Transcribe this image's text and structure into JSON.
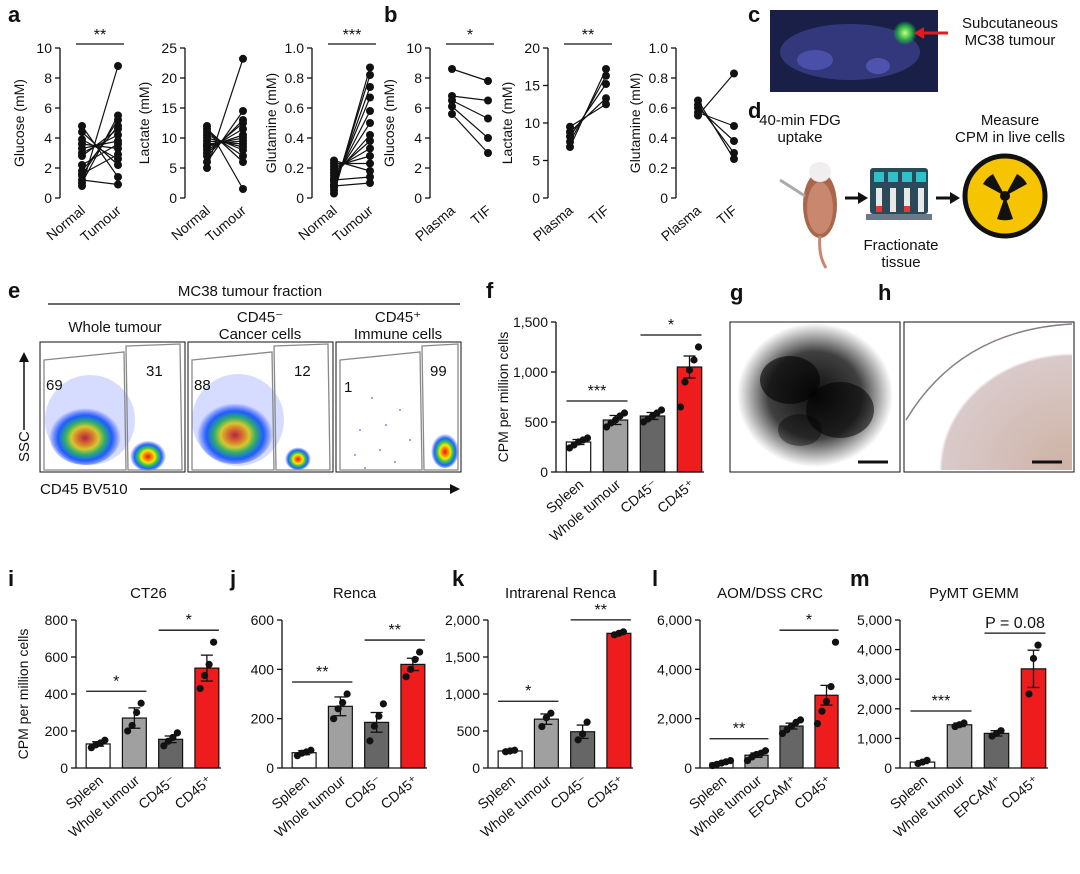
{
  "colors": {
    "black": "#111111",
    "red": "#ee1c1c",
    "dark_grey": "#666666",
    "mid_grey": "#a0a0a0",
    "white": "#ffffff"
  },
  "panel_letters": [
    "a",
    "b",
    "c",
    "d",
    "e",
    "f",
    "g",
    "h",
    "i",
    "j",
    "k",
    "l",
    "m"
  ],
  "chart_data": [
    {
      "id": "a1",
      "type": "paired",
      "panel": "a",
      "ylabel": "Glucose (mM)",
      "categories": [
        "Normal",
        "Tumour"
      ],
      "ylim": [
        0,
        10
      ],
      "ticks": [
        "0",
        "2",
        "4",
        "6",
        "8",
        "10"
      ],
      "sig": "**",
      "pairs": [
        [
          0.8,
          8.8
        ],
        [
          1.0,
          5.5
        ],
        [
          1.5,
          5.2
        ],
        [
          1.8,
          4.8
        ],
        [
          2.8,
          4.6
        ],
        [
          3.0,
          4.2
        ],
        [
          3.3,
          3.8
        ],
        [
          3.6,
          3.3
        ],
        [
          3.9,
          2.6
        ],
        [
          4.4,
          2.2
        ],
        [
          4.8,
          1.4
        ],
        [
          1.2,
          0.9
        ],
        [
          1.6,
          2.9
        ],
        [
          2.2,
          3.6
        ]
      ]
    },
    {
      "id": "a2",
      "type": "paired",
      "panel": "a",
      "ylabel": "Lactate (mM)",
      "categories": [
        "Normal",
        "Tumour"
      ],
      "ylim": [
        0,
        25
      ],
      "ticks": [
        "0",
        "5",
        "10",
        "15",
        "20",
        "25"
      ],
      "sig": "",
      "pairs": [
        [
          5.0,
          23.2
        ],
        [
          6.0,
          14.5
        ],
        [
          7.0,
          13.0
        ],
        [
          7.5,
          12.5
        ],
        [
          8.0,
          11.5
        ],
        [
          8.5,
          10.5
        ],
        [
          9.0,
          9.5
        ],
        [
          9.5,
          9.0
        ],
        [
          10.0,
          8.5
        ],
        [
          10.5,
          8.0
        ],
        [
          11.0,
          7.0
        ],
        [
          11.5,
          6.0
        ],
        [
          12.0,
          1.5
        ],
        [
          8.8,
          10.0
        ]
      ]
    },
    {
      "id": "a3",
      "type": "paired",
      "panel": "a",
      "ylabel": "Glutamine (mM)",
      "categories": [
        "Normal",
        "Tumour"
      ],
      "ylim": [
        0,
        1.0
      ],
      "ticks": [
        "0",
        "0.2",
        "0.4",
        "0.6",
        "0.8",
        "1.0"
      ],
      "sig": "***",
      "pairs": [
        [
          0.03,
          0.87
        ],
        [
          0.05,
          0.82
        ],
        [
          0.07,
          0.74
        ],
        [
          0.09,
          0.67
        ],
        [
          0.11,
          0.58
        ],
        [
          0.13,
          0.5
        ],
        [
          0.15,
          0.42
        ],
        [
          0.17,
          0.38
        ],
        [
          0.19,
          0.33
        ],
        [
          0.21,
          0.28
        ],
        [
          0.23,
          0.23
        ],
        [
          0.25,
          0.18
        ],
        [
          0.08,
          0.1
        ],
        [
          0.12,
          0.14
        ]
      ]
    },
    {
      "id": "b1",
      "type": "paired",
      "panel": "b",
      "ylabel": "Glucose (mM)",
      "categories": [
        "Plasma",
        "TIF"
      ],
      "ylim": [
        0,
        10
      ],
      "ticks": [
        "0",
        "2",
        "4",
        "6",
        "8",
        "10"
      ],
      "sig": "*",
      "pairs": [
        [
          8.6,
          7.8
        ],
        [
          6.8,
          6.5
        ],
        [
          6.5,
          5.3
        ],
        [
          6.1,
          4.0
        ],
        [
          5.6,
          3.0
        ]
      ]
    },
    {
      "id": "b2",
      "type": "paired",
      "panel": "b",
      "ylabel": "Lactate (mM)",
      "categories": [
        "Plasma",
        "TIF"
      ],
      "ylim": [
        0,
        20
      ],
      "ticks": [
        "0",
        "5",
        "10",
        "15",
        "20"
      ],
      "sig": "**",
      "pairs": [
        [
          6.8,
          17.2
        ],
        [
          7.5,
          16.3
        ],
        [
          8.2,
          15.2
        ],
        [
          8.8,
          13.3
        ],
        [
          9.5,
          12.5
        ]
      ]
    },
    {
      "id": "b3",
      "type": "paired",
      "panel": "b",
      "ylabel": "Glutamine (mM)",
      "categories": [
        "Plasma",
        "TIF"
      ],
      "ylim": [
        0,
        1.0
      ],
      "ticks": [
        "0",
        "0.2",
        "0.4",
        "0.6",
        "0.8",
        "1.0"
      ],
      "sig": "",
      "pairs": [
        [
          0.55,
          0.83
        ],
        [
          0.57,
          0.48
        ],
        [
          0.6,
          0.38
        ],
        [
          0.62,
          0.3
        ],
        [
          0.65,
          0.26
        ]
      ]
    },
    {
      "id": "f",
      "type": "bar",
      "panel": "f",
      "ylabel": "CPM per million cells",
      "categories": [
        "Spleen",
        "Whole tumour",
        "CD45⁻",
        "CD45⁺"
      ],
      "ylim": [
        0,
        1500
      ],
      "ticks": [
        "0",
        "500",
        "1,000",
        "1,500"
      ],
      "values": [
        300,
        520,
        560,
        1050
      ],
      "errors": [
        25,
        45,
        35,
        110
      ],
      "points": [
        [
          240,
          270,
          300,
          320,
          340
        ],
        [
          450,
          490,
          520,
          560,
          590
        ],
        [
          500,
          530,
          560,
          590,
          620
        ],
        [
          650,
          900,
          1020,
          1120,
          1250
        ]
      ],
      "sig": [
        {
          "from": 0,
          "to": 1,
          "text": "***"
        },
        {
          "from": 2,
          "to": 3,
          "text": "*"
        }
      ]
    },
    {
      "id": "i",
      "type": "bar",
      "panel": "i",
      "title": "CT26",
      "ylabel": "CPM per million cells",
      "categories": [
        "Spleen",
        "Whole tumour",
        "CD45⁻",
        "CD45⁺"
      ],
      "ylim": [
        0,
        800
      ],
      "ticks": [
        "0",
        "200",
        "400",
        "600",
        "800"
      ],
      "values": [
        130,
        270,
        155,
        540
      ],
      "errors": [
        12,
        55,
        18,
        70
      ],
      "points": [
        [
          110,
          125,
          135,
          150
        ],
        [
          200,
          230,
          300,
          350
        ],
        [
          120,
          145,
          165,
          190
        ],
        [
          430,
          500,
          560,
          680
        ]
      ],
      "sig": [
        {
          "from": 0,
          "to": 1,
          "text": "*"
        },
        {
          "from": 2,
          "to": 3,
          "text": "*"
        }
      ]
    },
    {
      "id": "j",
      "type": "bar",
      "panel": "j",
      "title": "Renca",
      "ylabel": "",
      "categories": [
        "Spleen",
        "Whole tumour",
        "CD45⁻",
        "CD45⁺"
      ],
      "ylim": [
        0,
        600
      ],
      "ticks": [
        "0",
        "200",
        "400",
        "600"
      ],
      "values": [
        62,
        250,
        185,
        420
      ],
      "errors": [
        8,
        38,
        40,
        25
      ],
      "points": [
        [
          50,
          60,
          65,
          72
        ],
        [
          200,
          240,
          265,
          300
        ],
        [
          110,
          170,
          210,
          260
        ],
        [
          370,
          400,
          440,
          470
        ]
      ],
      "sig": [
        {
          "from": 0,
          "to": 1,
          "text": "**"
        },
        {
          "from": 2,
          "to": 3,
          "text": "**"
        }
      ]
    },
    {
      "id": "k",
      "type": "bar",
      "panel": "k",
      "title": "Intrarenal Renca",
      "ylabel": "",
      "categories": [
        "Spleen",
        "Whole tumour",
        "CD45⁻",
        "CD45⁺"
      ],
      "ylim": [
        0,
        2000
      ],
      "ticks": [
        "0",
        "500",
        "1,000",
        "1,500",
        "2,000"
      ],
      "values": [
        230,
        660,
        490,
        1820
      ],
      "errors": [
        10,
        70,
        90,
        15
      ],
      "points": [
        [
          220,
          230,
          240
        ],
        [
          560,
          680,
          740
        ],
        [
          380,
          460,
          620
        ],
        [
          1800,
          1820,
          1840
        ]
      ],
      "sig": [
        {
          "from": 0,
          "to": 1,
          "text": "*"
        },
        {
          "from": 2,
          "to": 3,
          "text": "**"
        }
      ]
    },
    {
      "id": "l",
      "type": "bar",
      "panel": "l",
      "title": "AOM/DSS CRC",
      "ylabel": "",
      "categories": [
        "Spleen",
        "Whole tumour",
        "EPCAM⁺",
        "CD45⁺"
      ],
      "ylim": [
        0,
        6000
      ],
      "ticks": [
        "0",
        "2,000",
        "4,000",
        "6,000"
      ],
      "values": [
        200,
        520,
        1700,
        2950
      ],
      "errors": [
        40,
        90,
        120,
        400
      ],
      "points": [
        [
          100,
          150,
          200,
          250,
          300
        ],
        [
          300,
          450,
          550,
          600,
          700
        ],
        [
          1400,
          1550,
          1700,
          1850,
          1950
        ],
        [
          1800,
          2300,
          2700,
          3300,
          5100
        ]
      ],
      "sig": [
        {
          "from": 0,
          "to": 1,
          "text": "**"
        },
        {
          "from": 2,
          "to": 3,
          "text": "*"
        }
      ]
    },
    {
      "id": "m",
      "type": "bar",
      "panel": "m",
      "title": "PyMT GEMM",
      "ylabel": "",
      "categories": [
        "Spleen",
        "Whole tumour",
        "EPCAM⁺",
        "CD45⁺"
      ],
      "ylim": [
        0,
        5000
      ],
      "ticks": [
        "0",
        "1,000",
        "2,000",
        "3,000",
        "4,000",
        "5,000"
      ],
      "values": [
        200,
        1460,
        1170,
        3350
      ],
      "errors": [
        50,
        60,
        90,
        630
      ],
      "points": [
        [
          150,
          200,
          260
        ],
        [
          1400,
          1460,
          1520
        ],
        [
          1080,
          1170,
          1260
        ],
        [
          2500,
          3700,
          4150
        ]
      ],
      "sig": [
        {
          "from": 0,
          "to": 1,
          "text": "***"
        },
        {
          "from": 2,
          "to": 3,
          "text": "P = 0.08"
        }
      ]
    }
  ],
  "panel_c": {
    "arrow_label_line1": "Subcutaneous",
    "arrow_label_line2": "MC38 tumour"
  },
  "panel_d": {
    "step1_line1": "40-min FDG",
    "step1_line2": "uptake",
    "step2_line1": "Fractionate",
    "step2_line2": "tissue",
    "step3_line1": "Measure",
    "step3_line2": "CPM in live cells"
  },
  "panel_e": {
    "header": "MC38 tumour fraction",
    "plots": [
      {
        "title1": "Whole tumour",
        "title2": "",
        "left": "69",
        "right": "31"
      },
      {
        "title1": "CD45⁻",
        "title2": "Cancer cells",
        "left": "88",
        "right": "12"
      },
      {
        "title1": "CD45⁺",
        "title2": "Immune cells",
        "left": "1",
        "right": "99"
      }
    ],
    "ylabel": "SSC",
    "xlabel": "CD45 BV510"
  }
}
